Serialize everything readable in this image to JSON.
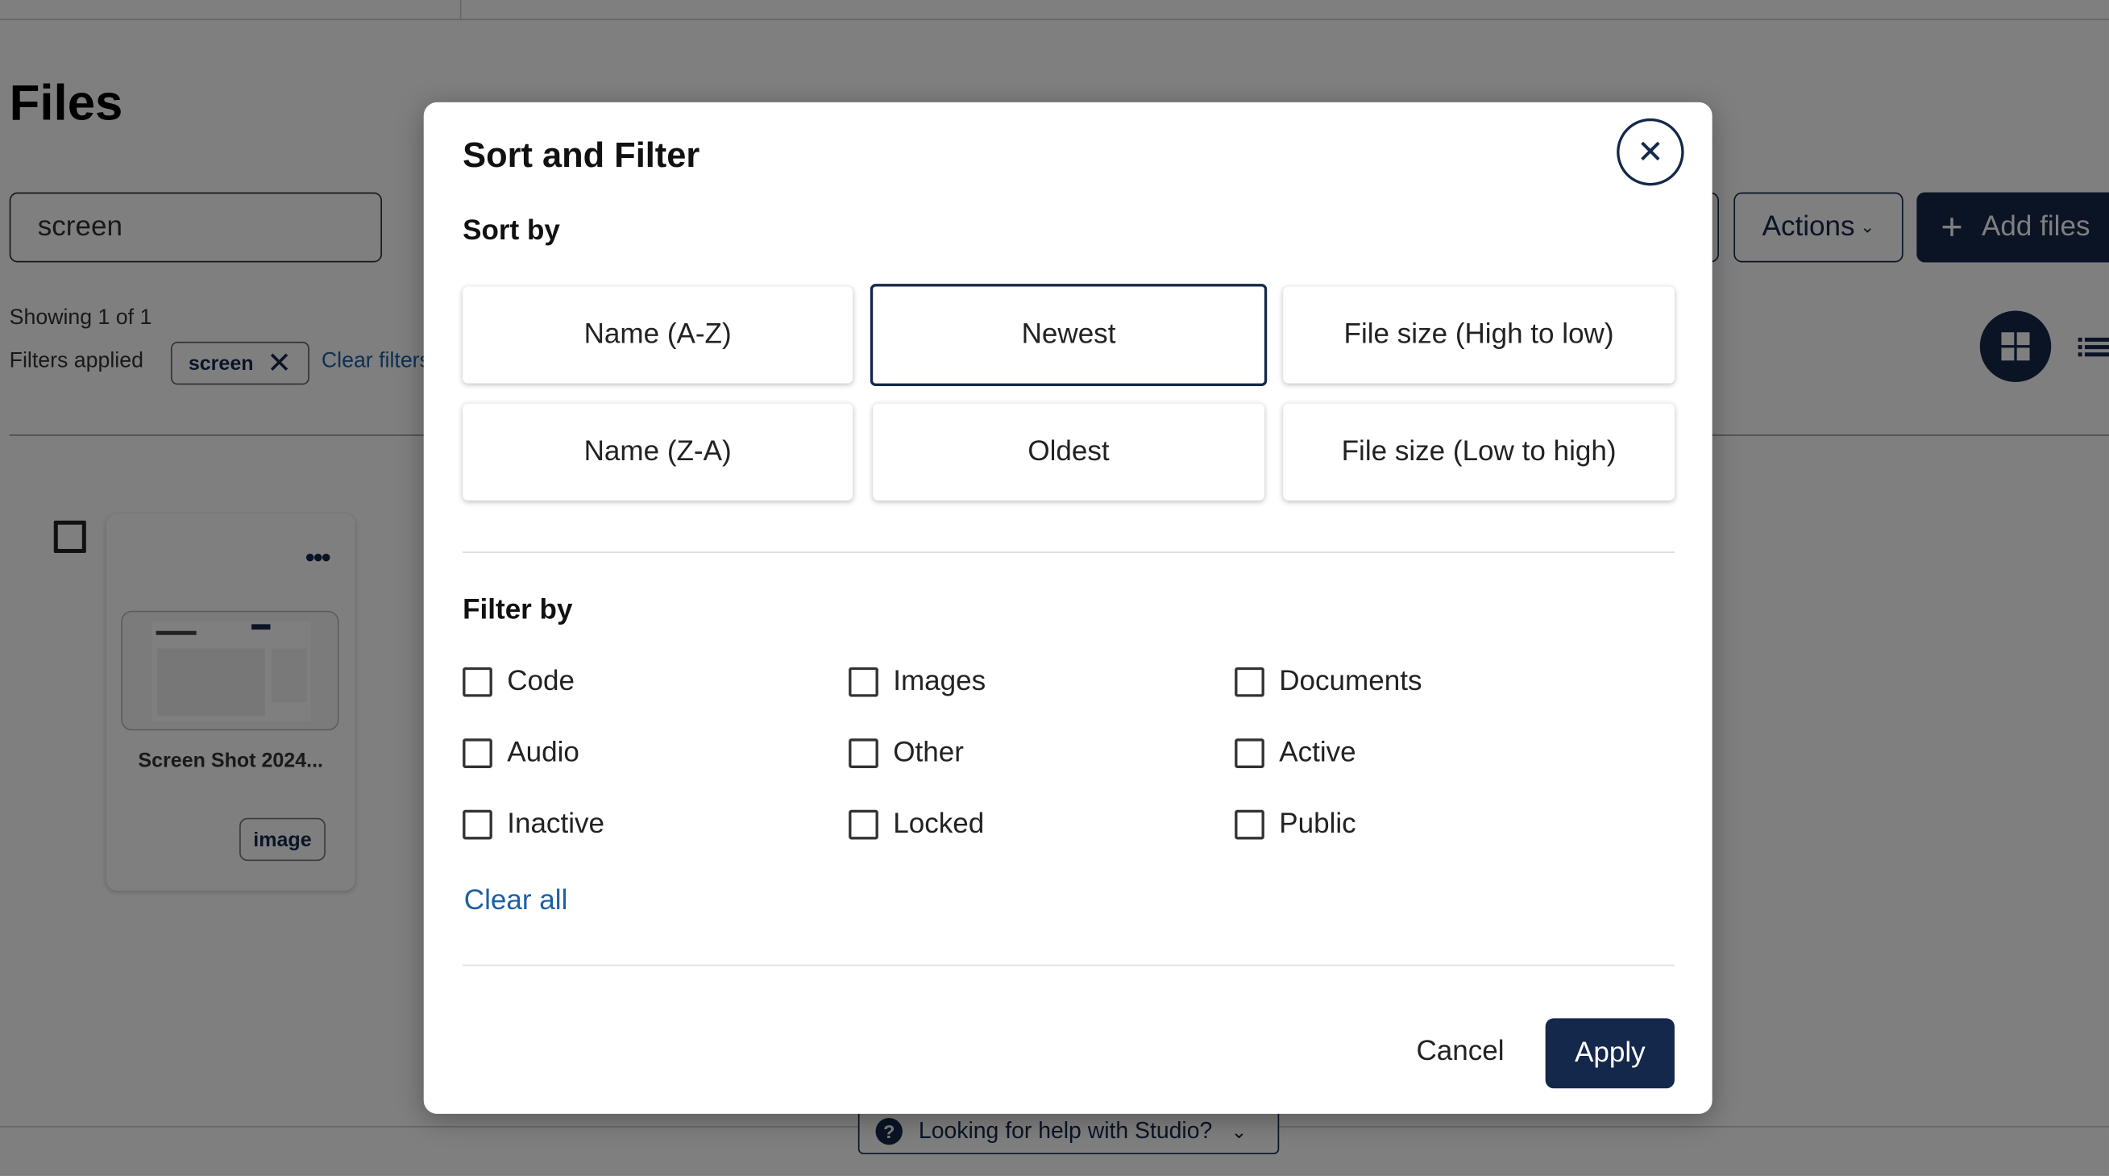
{
  "page": {
    "title": "Files",
    "search_value": "screen",
    "showing": "Showing 1 of 1",
    "filters_applied_label": "Filters applied",
    "filter_chip": "screen",
    "clear_filters": "Clear filters",
    "actions_label": "Actions",
    "add_files_label": "Add files",
    "file_card": {
      "name": "Screen Shot 2024...",
      "type_badge": "image"
    },
    "help_label": "Looking for help with Studio?"
  },
  "modal": {
    "title": "Sort and Filter",
    "sort_heading": "Sort by",
    "sort_options": [
      {
        "label": "Name (A-Z)",
        "selected": false
      },
      {
        "label": "Newest",
        "selected": true
      },
      {
        "label": "File size (High to low)",
        "selected": false
      },
      {
        "label": "Name (Z-A)",
        "selected": false
      },
      {
        "label": "Oldest",
        "selected": false
      },
      {
        "label": "File size (Low to high)",
        "selected": false
      }
    ],
    "filter_heading": "Filter by",
    "filter_options": [
      {
        "label": "Code",
        "checked": false
      },
      {
        "label": "Images",
        "checked": false
      },
      {
        "label": "Documents",
        "checked": false
      },
      {
        "label": "Audio",
        "checked": false
      },
      {
        "label": "Other",
        "checked": false
      },
      {
        "label": "Active",
        "checked": false
      },
      {
        "label": "Inactive",
        "checked": false
      },
      {
        "label": "Locked",
        "checked": false
      },
      {
        "label": "Public",
        "checked": false
      }
    ],
    "clear_all": "Clear all",
    "cancel": "Cancel",
    "apply": "Apply"
  },
  "colors": {
    "brand": "#14284b",
    "link": "#1f5fa3",
    "overlay": "rgba(0,0,0,0.5)"
  }
}
